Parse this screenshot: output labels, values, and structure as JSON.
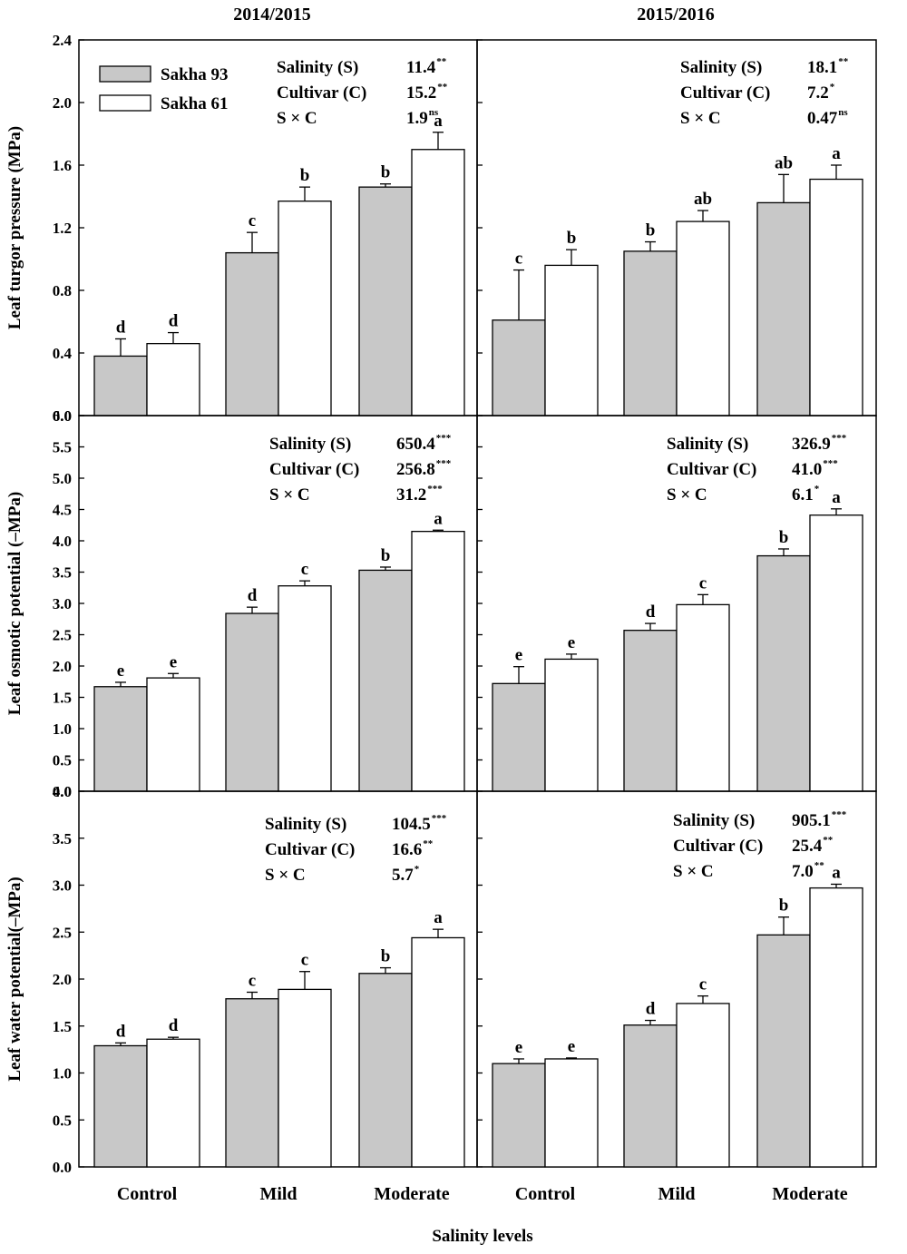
{
  "figure": {
    "year_titles": [
      "2014/2015",
      "2015/2016"
    ],
    "x_axis_title": "Salinity levels",
    "legend": [
      {
        "name": "Sakha 93",
        "color": "#c8c8c8"
      },
      {
        "name": "Sakha 61",
        "color": "#ffffff"
      }
    ]
  },
  "chart_data": [
    {
      "type": "bar",
      "row": 0,
      "col": 0,
      "season": "2014/2015",
      "ylabel": "Leaf turgor pressure (MPa)",
      "ylim": [
        0,
        2.4
      ],
      "yticks": [
        "0.0",
        "0.4",
        "0.8",
        "1.2",
        "1.6",
        "2.0",
        "2.4"
      ],
      "ytick_step": 0.4,
      "categories": [
        "Control",
        "Mild",
        "Moderate"
      ],
      "series": [
        {
          "name": "Sakha 93",
          "values": [
            0.38,
            1.04,
            1.46
          ],
          "errors": [
            0.11,
            0.13,
            0.02
          ],
          "letters": [
            "d",
            "c",
            "b"
          ]
        },
        {
          "name": "Sakha 61",
          "values": [
            0.46,
            1.37,
            1.7
          ],
          "errors": [
            0.07,
            0.09,
            0.11
          ],
          "letters": [
            "d",
            "b",
            "a"
          ]
        }
      ],
      "anova": [
        {
          "label": "Salinity (S)",
          "value": "11.4",
          "sig": "**"
        },
        {
          "label": "Cultivar (C)",
          "value": "15.2",
          "sig": "**"
        },
        {
          "label": "S × C",
          "value": "1.9",
          "sig": "ns"
        }
      ]
    },
    {
      "type": "bar",
      "row": 0,
      "col": 1,
      "season": "2015/2016",
      "ylabel": "",
      "ylim": [
        0,
        2.4
      ],
      "ytick_step": 0.4,
      "categories": [
        "Control",
        "Mild",
        "Moderate"
      ],
      "series": [
        {
          "name": "Sakha 93",
          "values": [
            0.61,
            1.05,
            1.36
          ],
          "errors": [
            0.32,
            0.06,
            0.18
          ],
          "letters": [
            "c",
            "b",
            "ab"
          ]
        },
        {
          "name": "Sakha 61",
          "values": [
            0.96,
            1.24,
            1.51
          ],
          "errors": [
            0.1,
            0.07,
            0.09
          ],
          "letters": [
            "b",
            "ab",
            "a"
          ]
        }
      ],
      "anova": [
        {
          "label": "Salinity (S)",
          "value": "18.1",
          "sig": "**"
        },
        {
          "label": "Cultivar (C)",
          "value": "7.2",
          "sig": "*"
        },
        {
          "label": "S × C",
          "value": "0.47",
          "sig": "ns"
        }
      ]
    },
    {
      "type": "bar",
      "row": 1,
      "col": 0,
      "season": "2014/2015",
      "ylabel": "Leaf osmotic potential (–MPa)",
      "ylim": [
        0,
        6.0
      ],
      "yticks": [
        "0.0",
        "0.5",
        "1.0",
        "1.5",
        "2.0",
        "2.5",
        "3.0",
        "3.5",
        "4.0",
        "4.5",
        "5.0",
        "5.5",
        "6.0"
      ],
      "ytick_step": 0.5,
      "categories": [
        "Control",
        "Mild",
        "Moderate"
      ],
      "series": [
        {
          "name": "Sakha 93",
          "values": [
            1.67,
            2.84,
            3.53
          ],
          "errors": [
            0.07,
            0.1,
            0.05
          ],
          "letters": [
            "e",
            "d",
            "b"
          ]
        },
        {
          "name": "Sakha 61",
          "values": [
            1.81,
            3.28,
            4.15
          ],
          "errors": [
            0.07,
            0.08,
            0.02
          ],
          "letters": [
            "e",
            "c",
            "a"
          ]
        }
      ],
      "anova": [
        {
          "label": "Salinity (S)",
          "value": "650.4",
          "sig": "***"
        },
        {
          "label": "Cultivar (C)",
          "value": "256.8",
          "sig": "***"
        },
        {
          "label": "S × C",
          "value": "31.2",
          "sig": "***"
        }
      ]
    },
    {
      "type": "bar",
      "row": 1,
      "col": 1,
      "season": "2015/2016",
      "ylabel": "",
      "ylim": [
        0,
        6.0
      ],
      "ytick_step": 0.5,
      "categories": [
        "Control",
        "Mild",
        "Moderate"
      ],
      "series": [
        {
          "name": "Sakha 93",
          "values": [
            1.72,
            2.57,
            3.76
          ],
          "errors": [
            0.27,
            0.11,
            0.11
          ],
          "letters": [
            "e",
            "d",
            "b"
          ]
        },
        {
          "name": "Sakha 61",
          "values": [
            2.11,
            2.98,
            4.41
          ],
          "errors": [
            0.08,
            0.16,
            0.1
          ],
          "letters": [
            "e",
            "c",
            "a"
          ]
        }
      ],
      "anova": [
        {
          "label": "Salinity (S)",
          "value": "326.9",
          "sig": "***"
        },
        {
          "label": "Cultivar (C)",
          "value": "41.0",
          "sig": "***"
        },
        {
          "label": "S × C",
          "value": "6.1",
          "sig": "*"
        }
      ]
    },
    {
      "type": "bar",
      "row": 2,
      "col": 0,
      "season": "2014/2015",
      "ylabel": "Leaf water potential(–MPa)",
      "ylim": [
        0,
        4.0
      ],
      "yticks": [
        "0.0",
        "0.5",
        "1.0",
        "1.5",
        "2.0",
        "2.5",
        "3.0",
        "3.5",
        "4.0"
      ],
      "ytick_step": 0.5,
      "categories": [
        "Control",
        "Mild",
        "Moderate"
      ],
      "series": [
        {
          "name": "Sakha 93",
          "values": [
            1.29,
            1.79,
            2.06
          ],
          "errors": [
            0.03,
            0.07,
            0.06
          ],
          "letters": [
            "d",
            "c",
            "b"
          ]
        },
        {
          "name": "Sakha 61",
          "values": [
            1.36,
            1.89,
            2.44
          ],
          "errors": [
            0.02,
            0.19,
            0.09
          ],
          "letters": [
            "d",
            "c",
            "a"
          ]
        }
      ],
      "anova": [
        {
          "label": "Salinity (S)",
          "value": "104.5",
          "sig": "***"
        },
        {
          "label": "Cultivar (C)",
          "value": "16.6",
          "sig": "**"
        },
        {
          "label": "S × C",
          "value": "5.7",
          "sig": "*"
        }
      ]
    },
    {
      "type": "bar",
      "row": 2,
      "col": 1,
      "season": "2015/2016",
      "ylabel": "",
      "ylim": [
        0,
        4.0
      ],
      "ytick_step": 0.5,
      "categories": [
        "Control",
        "Mild",
        "Moderate"
      ],
      "series": [
        {
          "name": "Sakha 93",
          "values": [
            1.1,
            1.51,
            2.47
          ],
          "errors": [
            0.05,
            0.05,
            0.19
          ],
          "letters": [
            "e",
            "d",
            "b"
          ]
        },
        {
          "name": "Sakha 61",
          "values": [
            1.15,
            1.74,
            2.97
          ],
          "errors": [
            0.01,
            0.08,
            0.04
          ],
          "letters": [
            "e",
            "c",
            "a"
          ]
        }
      ],
      "anova": [
        {
          "label": "Salinity (S)",
          "value": "905.1",
          "sig": "***"
        },
        {
          "label": "Cultivar (C)",
          "value": "25.4",
          "sig": "**"
        },
        {
          "label": "S × C",
          "value": "7.0",
          "sig": "**"
        }
      ]
    }
  ]
}
